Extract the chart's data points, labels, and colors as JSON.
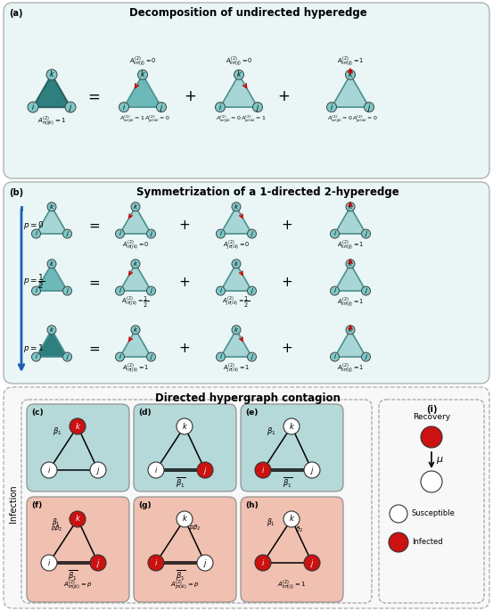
{
  "title_a": "Decomposition of undirected hyperedge",
  "title_b": "Symmetrization of a 1-directed 2-hyperedge",
  "title_c": "Directed hypergraph contagion",
  "teal_fill_light": "#a8d5d5",
  "teal_fill_mid": "#6db8b8",
  "teal_fill_dark": "#2e8080",
  "teal_edge": "#4a9090",
  "red_arrow": "#cc0000",
  "blue_arrow": "#1a5fb4",
  "node_teal": "#7ec8c8",
  "node_white": "#ffffff",
  "node_red": "#cc1111",
  "panel_ab_bg": "#eaf6f6",
  "panel_c_bg": "#f8f8f8",
  "infection_blue_bg": "#b0d8d8",
  "infection_red_bg": "#f0c0b0"
}
